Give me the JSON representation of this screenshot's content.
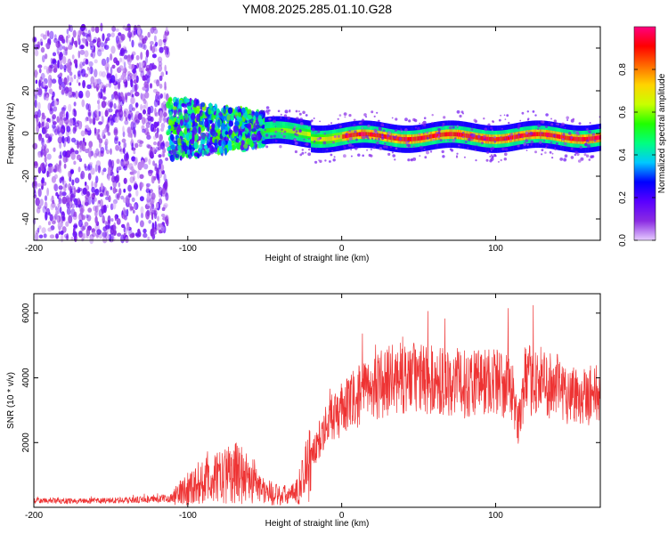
{
  "title": "YM08.2025.285.01.10.G28",
  "chart_data": [
    {
      "type": "heatmap",
      "xlabel": "Height of straight line (km)",
      "ylabel": "Frequency (Hz)",
      "xlim": [
        -200,
        168
      ],
      "ylim": [
        -50,
        50
      ],
      "xticks": [
        -200,
        -100,
        0,
        100
      ],
      "yticks": [
        -40,
        -20,
        0,
        20,
        40
      ],
      "grid": false,
      "colorbar": {
        "label": "Normalized spectral amplitude",
        "range": [
          0,
          1
        ],
        "ticks": [
          0.0,
          0.2,
          0.4,
          0.6,
          0.8
        ],
        "colormap": [
          "#e6ccff",
          "#8a2be2",
          "#5a00ff",
          "#0000ff",
          "#00c8ff",
          "#00ff80",
          "#20ff00",
          "#c8ff00",
          "#ffd400",
          "#ff6a00",
          "#ff0000",
          "#ff0080"
        ]
      },
      "regions": [
        {
          "name": "noise",
          "x_range": [
            -200,
            -113
          ],
          "f_range": [
            -50,
            50
          ],
          "amplitude": 0.08
        },
        {
          "name": "transition",
          "x_range": [
            -113,
            -50
          ],
          "f_range": [
            -12,
            18
          ],
          "amplitude": 0.25
        },
        {
          "name": "signal",
          "x_range": [
            -50,
            168
          ],
          "f_center": -1.5,
          "f_halfwidth": 4,
          "amplitude": 0.9
        }
      ]
    },
    {
      "type": "line",
      "xlabel": "Height of straight line (km)",
      "ylabel": "SNR (10 * v/v)",
      "xlim": [
        -200,
        168
      ],
      "ylim": [
        0,
        6600
      ],
      "xticks": [
        -200,
        -100,
        0,
        100
      ],
      "yticks": [
        2000,
        4000,
        6000
      ],
      "grid": false,
      "color": "#ee3333",
      "series": [
        {
          "x": [
            -200,
            -180,
            -160,
            -140,
            -120,
            -110,
            -100,
            -90,
            -80,
            -70,
            -60,
            -50,
            -40,
            -30,
            -20,
            -10,
            0,
            10,
            20,
            30,
            40,
            50,
            60,
            70,
            80,
            90,
            100,
            110,
            115,
            120,
            130,
            140,
            150,
            160,
            168
          ],
          "values": [
            200,
            200,
            200,
            220,
            250,
            300,
            600,
            800,
            900,
            1100,
            900,
            500,
            350,
            400,
            1500,
            2600,
            3000,
            3400,
            3700,
            3900,
            4000,
            4000,
            3900,
            3900,
            3800,
            3900,
            3900,
            3700,
            2600,
            3900,
            3900,
            3700,
            3500,
            3500,
            3500
          ]
        }
      ]
    }
  ]
}
